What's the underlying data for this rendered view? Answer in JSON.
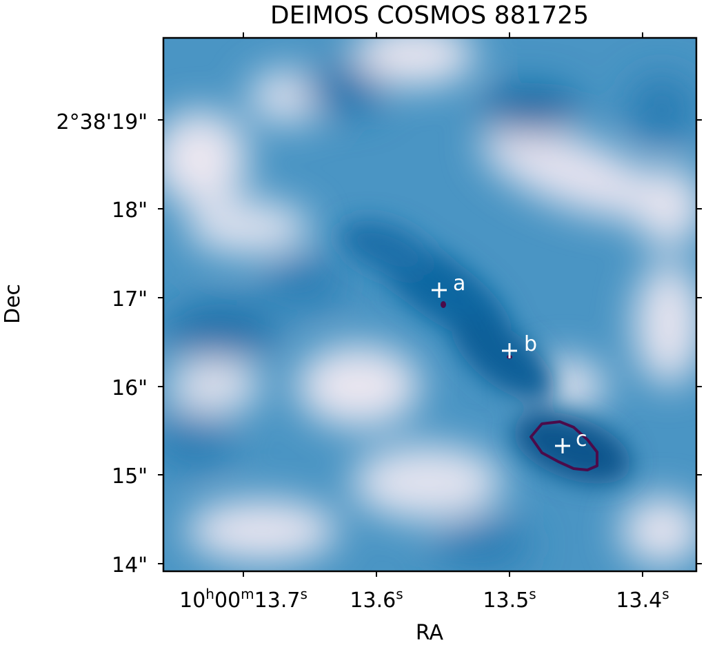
{
  "chart_data": {
    "type": "heatmap",
    "title": "DEIMOS COSMOS 881725",
    "xlabel": "RA",
    "ylabel": "Dec",
    "colormap": "blue-white",
    "colors": {
      "contour": "#4b0b4a",
      "marker": "#ffffff",
      "frame": "#000000",
      "dark": "#0a5e98",
      "mid": "#4a95c4",
      "light": "#eae6f0"
    },
    "x_ticks": [
      {
        "value": "10:00:13.7",
        "label_main": "10",
        "label_sup1": "h",
        "label_mid": "00",
        "label_sup2": "m",
        "label_rest": "13.7",
        "label_sup3": "s"
      },
      {
        "value": "10:00:13.6",
        "label_main": "",
        "label_sup1": "",
        "label_mid": "",
        "label_sup2": "",
        "label_rest": "13.6",
        "label_sup3": "s"
      },
      {
        "value": "10:00:13.5",
        "label_main": "",
        "label_sup1": "",
        "label_mid": "",
        "label_sup2": "",
        "label_rest": "13.5",
        "label_sup3": "s"
      },
      {
        "value": "10:00:13.4",
        "label_main": "",
        "label_sup1": "",
        "label_mid": "",
        "label_sup2": "",
        "label_rest": "13.4",
        "label_sup3": "s"
      }
    ],
    "y_ticks": [
      {
        "value": "+2:38:19",
        "label": "2°38'19\""
      },
      {
        "value": "+2:38:18",
        "label": "18\""
      },
      {
        "value": "+2:38:17",
        "label": "17\""
      },
      {
        "value": "+2:38:16",
        "label": "16\""
      },
      {
        "value": "+2:38:15",
        "label": "15\""
      },
      {
        "value": "+2:38:14",
        "label": "14\""
      }
    ],
    "sources": [
      {
        "label": "a",
        "ra_s": 13.555,
        "dec_arcsec": 17.08
      },
      {
        "label": "b",
        "ra_s": 13.5,
        "dec_arcsec": 16.4
      },
      {
        "label": "c",
        "ra_s": 13.46,
        "dec_arcsec": 15.33
      }
    ]
  }
}
